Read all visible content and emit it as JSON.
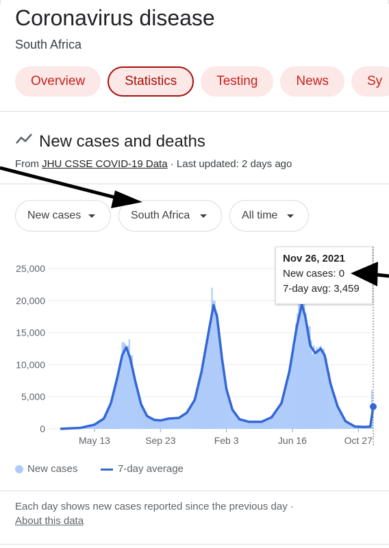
{
  "header": {
    "title": "Coronavirus disease",
    "subtitle": "South Africa"
  },
  "tabs": [
    {
      "label": "Overview",
      "active": false
    },
    {
      "label": "Statistics",
      "active": true
    },
    {
      "label": "Testing",
      "active": false
    },
    {
      "label": "News",
      "active": false
    },
    {
      "label": "Sy",
      "active": false
    }
  ],
  "section": {
    "icon": "trending-line-icon",
    "title": "New cases and deaths",
    "source_prefix": "From ",
    "source_link": "JHU CSSE COVID-19 Data",
    "source_suffix": " · Last updated: 2 days ago"
  },
  "filters": {
    "metric": "New cases",
    "location": "South Africa",
    "range": "All time"
  },
  "tooltip": {
    "date": "Nov 26, 2021",
    "new_cases": "New cases: 0",
    "avg": "7-day avg: 3,459"
  },
  "legend": {
    "bars": "New cases",
    "line": "7-day average"
  },
  "footer": {
    "note": "Each day shows new cases reported since the previous day  ·",
    "link": "About this data"
  },
  "colors": {
    "bars": "#aecbfa",
    "line": "#3367d6",
    "tab_bg": "#fce8e6",
    "tab_text": "#c5221f"
  },
  "chart_data": {
    "type": "area",
    "yticks": [
      0,
      5000,
      10000,
      15000,
      20000,
      25000
    ],
    "ytick_labels": [
      "0",
      "5,000",
      "10,000",
      "15,000",
      "20,000",
      "25,000"
    ],
    "ylim": [
      0,
      25000
    ],
    "x_start": "2020-03-05",
    "x_end": "2021-11-26",
    "xticks": [
      {
        "date": "2020-05-13",
        "label": "May 13"
      },
      {
        "date": "2020-09-23",
        "label": "Sep 23"
      },
      {
        "date": "2021-02-03",
        "label": "Feb 3"
      },
      {
        "date": "2021-06-16",
        "label": "Jun 16"
      },
      {
        "date": "2021-10-27",
        "label": "Oct 27"
      }
    ],
    "series": [
      {
        "name": "7-day average",
        "points": [
          [
            "2020-03-05",
            0
          ],
          [
            "2020-04-15",
            150
          ],
          [
            "2020-05-13",
            650
          ],
          [
            "2020-06-01",
            1600
          ],
          [
            "2020-06-15",
            4000
          ],
          [
            "2020-06-28",
            8000
          ],
          [
            "2020-07-08",
            11500
          ],
          [
            "2020-07-16",
            12700
          ],
          [
            "2020-07-24",
            11000
          ],
          [
            "2020-08-03",
            7500
          ],
          [
            "2020-08-15",
            3800
          ],
          [
            "2020-08-27",
            2000
          ],
          [
            "2020-09-10",
            1400
          ],
          [
            "2020-09-23",
            1300
          ],
          [
            "2020-10-10",
            1600
          ],
          [
            "2020-10-30",
            1700
          ],
          [
            "2020-11-15",
            2500
          ],
          [
            "2020-12-01",
            4500
          ],
          [
            "2020-12-15",
            9000
          ],
          [
            "2020-12-30",
            15500
          ],
          [
            "2021-01-08",
            19300
          ],
          [
            "2021-01-15",
            17500
          ],
          [
            "2021-01-25",
            11000
          ],
          [
            "2021-02-03",
            6200
          ],
          [
            "2021-02-15",
            3000
          ],
          [
            "2021-03-01",
            1500
          ],
          [
            "2021-03-20",
            1100
          ],
          [
            "2021-04-15",
            1100
          ],
          [
            "2021-05-05",
            1800
          ],
          [
            "2021-05-25",
            4000
          ],
          [
            "2021-06-10",
            9000
          ],
          [
            "2021-06-25",
            16000
          ],
          [
            "2021-07-05",
            19400
          ],
          [
            "2021-07-12",
            17500
          ],
          [
            "2021-07-22",
            13000
          ],
          [
            "2021-08-01",
            11800
          ],
          [
            "2021-08-12",
            12500
          ],
          [
            "2021-08-20",
            11500
          ],
          [
            "2021-09-01",
            7000
          ],
          [
            "2021-09-15",
            3500
          ],
          [
            "2021-10-01",
            1200
          ],
          [
            "2021-10-20",
            350
          ],
          [
            "2021-11-10",
            300
          ],
          [
            "2021-11-20",
            350
          ],
          [
            "2021-11-26",
            3459
          ]
        ]
      },
      {
        "name": "New cases",
        "points": [
          [
            "2020-07-10",
            13500
          ],
          [
            "2020-07-22",
            14000
          ],
          [
            "2020-07-26",
            11500
          ],
          [
            "2021-01-01",
            16000
          ],
          [
            "2021-01-05",
            20500
          ],
          [
            "2021-01-07",
            22000
          ],
          [
            "2021-01-09",
            20000
          ],
          [
            "2021-01-14",
            18000
          ],
          [
            "2021-06-28",
            18000
          ],
          [
            "2021-07-01",
            20000
          ],
          [
            "2021-07-03",
            23500
          ],
          [
            "2021-07-07",
            24000
          ],
          [
            "2021-07-10",
            22000
          ],
          [
            "2021-07-19",
            16000
          ],
          [
            "2021-11-24",
            4000
          ],
          [
            "2021-11-25",
            6000
          ],
          [
            "2021-11-26",
            0
          ]
        ]
      }
    ]
  }
}
